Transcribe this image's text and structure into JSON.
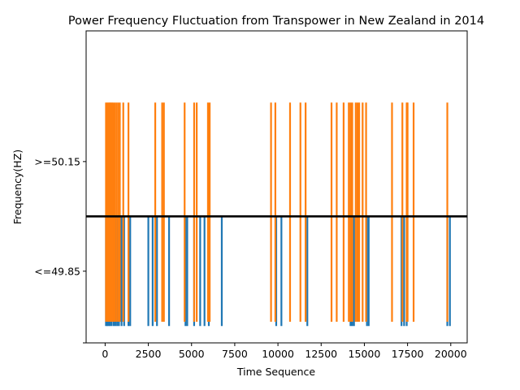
{
  "chart_data": {
    "type": "line",
    "title": "Power Frequency Fluctuation from Transpower in  New Zealand in 2014",
    "xlabel": "Time Sequence",
    "ylabel": "Frequency(HZ)",
    "xlim": [
      -1100,
      20950
    ],
    "ylim": [
      -1.5,
      2.2
    ],
    "xticks": [
      0,
      2500,
      5000,
      7500,
      10000,
      12500,
      15000,
      17500,
      20000
    ],
    "yticks": [
      {
        "value": -1.5,
        "label": ""
      },
      {
        "value": -0.65,
        "label": "<=49.85"
      },
      {
        "value": 0.65,
        "label": ">=50.15"
      }
    ],
    "baseline": {
      "y": 0,
      "color": "#000000"
    },
    "grid": false,
    "legend": "none",
    "colors": {
      "series_low": "#1f77b4",
      "series_high": "#ff7f0e"
    },
    "series": [
      {
        "values_note_free": true,
        "color": "#1f77b4",
        "low_level": -1.3,
        "high_level": 0,
        "spikes_x": [
          50,
          120,
          200,
          280,
          380,
          500,
          600,
          700,
          800,
          950,
          1100,
          1350,
          1450,
          2500,
          2750,
          3000,
          3700,
          4650,
          4750,
          5150,
          5500,
          5750,
          6000,
          6750,
          9900,
          10200,
          11700,
          14200,
          14300,
          14400,
          15150,
          15250,
          17150,
          17300,
          17450,
          19800,
          19950
        ]
      },
      {
        "color": "#ff7f0e",
        "low_level": -1.25,
        "high_level": 1.35,
        "spikes_x": [
          50,
          120,
          200,
          250,
          320,
          380,
          450,
          550,
          650,
          750,
          850,
          1050,
          1350,
          2900,
          3300,
          3400,
          4600,
          5150,
          5300,
          5950,
          6050,
          9600,
          9850,
          10700,
          11300,
          11600,
          13100,
          13400,
          13800,
          14100,
          14200,
          14300,
          14500,
          14600,
          14700,
          14900,
          15100,
          16600,
          17200,
          17450,
          17500,
          17850,
          19800
        ]
      }
    ]
  }
}
